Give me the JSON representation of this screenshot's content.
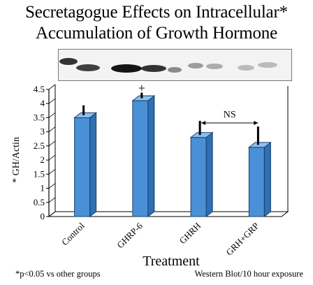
{
  "title_line1": "Secretagogue Effects on Intracellular*",
  "title_line2": "Accumulation of Growth Hormone",
  "footnote_left": "*p<0.05 vs other groups",
  "footnote_right": "Western Blot/10 hour exposure",
  "colors": {
    "bar": "#4a90d6",
    "bar_side": "#2f6fb3",
    "bar_top": "#8cc0ee",
    "axis": "#000000"
  },
  "chart_data": {
    "type": "bar",
    "categories": [
      "Control",
      "GHRP-6",
      "GHRH",
      "GRH+GRP"
    ],
    "values": [
      3.5,
      4.1,
      2.8,
      2.45
    ],
    "errors": [
      0.35,
      0.2,
      0.5,
      0.65
    ],
    "ylabel": "* GH/Actin",
    "xlabel": "Treatment",
    "ylim": [
      0,
      4.5
    ],
    "yticks": [
      "0",
      "0.5",
      "1",
      "1.5",
      "2",
      "2.5",
      "3",
      "3.5",
      "4",
      "4.5"
    ],
    "grid": false,
    "annotations": [
      {
        "text": "+",
        "category": "GHRP-6"
      },
      {
        "text": "NS",
        "between": [
          "GHRH",
          "GRH+GRP"
        ]
      }
    ]
  }
}
